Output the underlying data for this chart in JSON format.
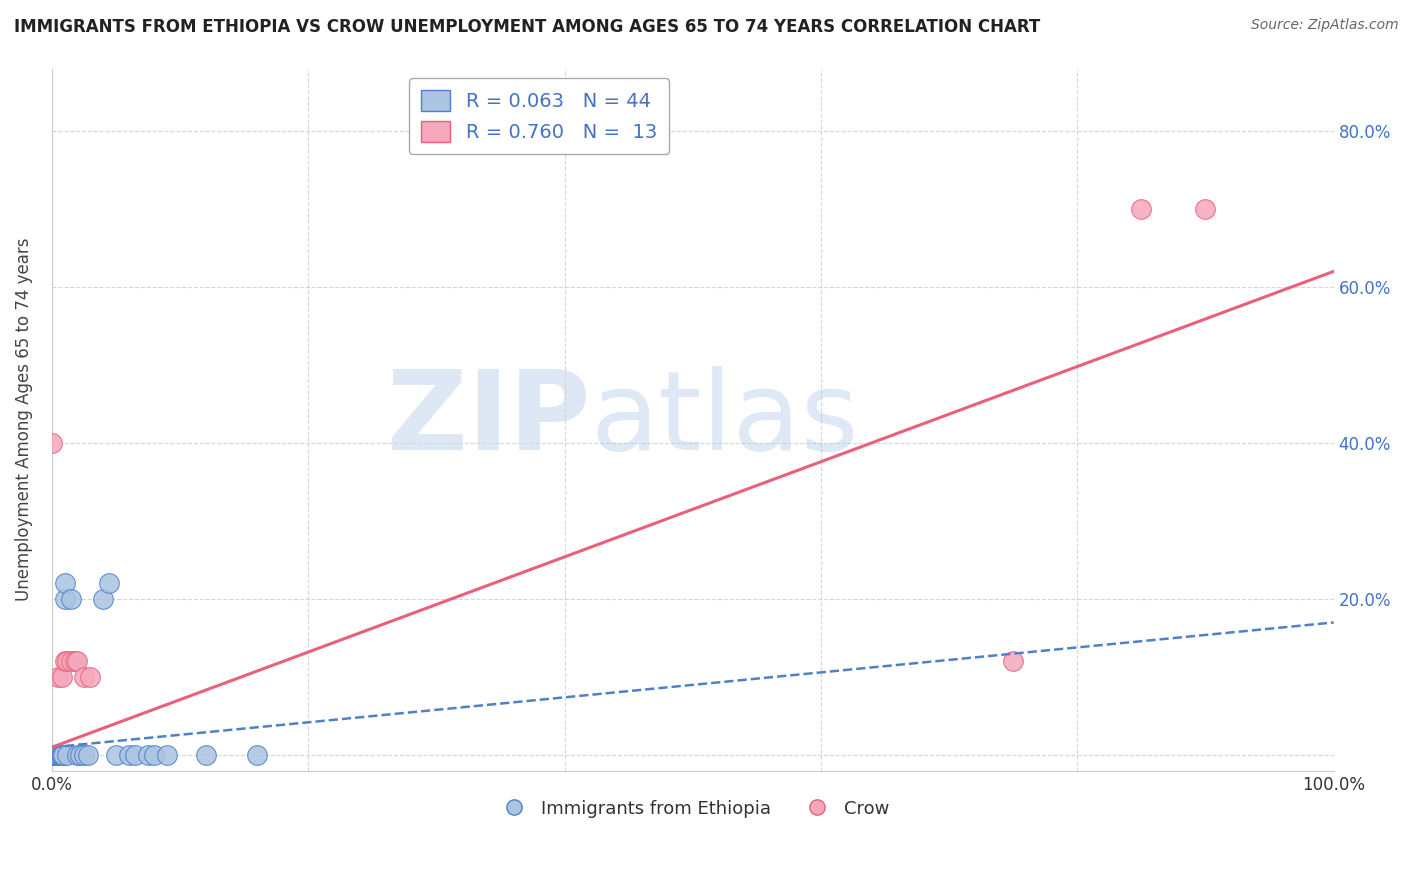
{
  "title": "IMMIGRANTS FROM ETHIOPIA VS CROW UNEMPLOYMENT AMONG AGES 65 TO 74 YEARS CORRELATION CHART",
  "source": "Source: ZipAtlas.com",
  "ylabel": "Unemployment Among Ages 65 to 74 years",
  "xlabel": "",
  "xlim": [
    0.0,
    1.0
  ],
  "ylim": [
    -0.02,
    0.88
  ],
  "xticks": [
    0.0,
    0.2,
    0.4,
    0.6,
    0.8,
    1.0
  ],
  "xticklabels": [
    "0.0%",
    "",
    "",
    "",
    "",
    "100.0%"
  ],
  "yticks": [
    0.0,
    0.2,
    0.4,
    0.6,
    0.8
  ],
  "yticklabels_right": [
    "",
    "20.0%",
    "40.0%",
    "60.0%",
    "80.0%"
  ],
  "legend_R1": "0.063",
  "legend_N1": "44",
  "legend_R2": "0.760",
  "legend_N2": "13",
  "ethiopia_color": "#aac4e2",
  "crow_color": "#f5a8bc",
  "ethiopia_line_color": "#5080c8",
  "crow_line_color": "#e8607a",
  "ethiopia_x": [
    0.0,
    0.0,
    0.0,
    0.0,
    0.001,
    0.001,
    0.001,
    0.002,
    0.002,
    0.002,
    0.002,
    0.003,
    0.003,
    0.003,
    0.003,
    0.004,
    0.004,
    0.004,
    0.005,
    0.005,
    0.006,
    0.006,
    0.007,
    0.008,
    0.008,
    0.009,
    0.01,
    0.01,
    0.012,
    0.015,
    0.02,
    0.022,
    0.025,
    0.028,
    0.04,
    0.045,
    0.05,
    0.06,
    0.065,
    0.075,
    0.08,
    0.09,
    0.12,
    0.16
  ],
  "ethiopia_y": [
    0.0,
    0.0,
    0.0,
    0.0,
    0.0,
    0.0,
    0.0,
    0.0,
    0.0,
    0.0,
    0.0,
    0.0,
    0.0,
    0.0,
    0.0,
    0.0,
    0.0,
    0.0,
    0.0,
    0.0,
    0.0,
    0.0,
    0.0,
    0.0,
    0.0,
    0.0,
    0.2,
    0.22,
    0.0,
    0.2,
    0.0,
    0.0,
    0.0,
    0.0,
    0.2,
    0.22,
    0.0,
    0.0,
    0.0,
    0.0,
    0.0,
    0.0,
    0.0,
    0.0
  ],
  "crow_x": [
    0.0,
    0.005,
    0.008,
    0.01,
    0.012,
    0.015,
    0.018,
    0.02,
    0.025,
    0.03,
    0.75,
    0.85,
    0.9
  ],
  "crow_y": [
    0.4,
    0.1,
    0.1,
    0.12,
    0.12,
    0.12,
    0.12,
    0.12,
    0.1,
    0.1,
    0.12,
    0.7,
    0.7
  ],
  "ethiopia_trend_x": [
    0.0,
    1.0
  ],
  "ethiopia_trend_y": [
    0.01,
    0.17
  ],
  "crow_trend_x": [
    0.0,
    1.0
  ],
  "crow_trend_y": [
    0.01,
    0.62
  ],
  "background_color": "#ffffff",
  "grid_color": "#cccccc"
}
